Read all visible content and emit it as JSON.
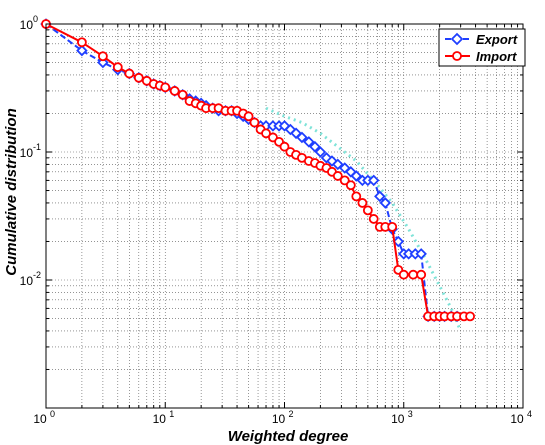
{
  "chart_data": {
    "type": "scatter",
    "title": "",
    "xlabel": "Weighted degree",
    "ylabel": "Cumulative distribution",
    "xscale": "log",
    "yscale": "log",
    "xlim": [
      1,
      10000
    ],
    "ylim": [
      0.001,
      1
    ],
    "grid": true,
    "legend_position": "top-right",
    "x_ticks": [
      {
        "base": "10",
        "exp": "0",
        "value": 1
      },
      {
        "base": "10",
        "exp": "1",
        "value": 10
      },
      {
        "base": "10",
        "exp": "2",
        "value": 100
      },
      {
        "base": "10",
        "exp": "3",
        "value": 1000
      },
      {
        "base": "10",
        "exp": "4",
        "value": 10000
      }
    ],
    "y_ticks": [
      {
        "base": "10",
        "exp": "0",
        "value": 1
      },
      {
        "base": "10",
        "exp": "-1",
        "value": 0.1
      },
      {
        "base": "10",
        "exp": "-2",
        "value": 0.01
      }
    ],
    "colors": {
      "export": "#1f3fff",
      "import": "#ff0000",
      "fit": "#7fe3d8",
      "grid": "#555555"
    },
    "series": [
      {
        "name": "Export",
        "marker": "diamond",
        "line_style": "dashed",
        "x": [
          1,
          2,
          3,
          4,
          5,
          6,
          7,
          8,
          9,
          10,
          12,
          14,
          16,
          18,
          20,
          22,
          25,
          28,
          32,
          36,
          40,
          45,
          50,
          56,
          63,
          70,
          80,
          90,
          100,
          112,
          125,
          140,
          160,
          180,
          200,
          225,
          250,
          280,
          320,
          360,
          400,
          450,
          500,
          560,
          630,
          700,
          800,
          900,
          1000,
          1100,
          1250,
          1400,
          1600,
          1800,
          2000,
          2200,
          2500,
          2800
        ],
        "y": [
          1,
          0.62,
          0.5,
          0.44,
          0.41,
          0.38,
          0.36,
          0.34,
          0.33,
          0.32,
          0.3,
          0.28,
          0.26,
          0.25,
          0.24,
          0.23,
          0.22,
          0.21,
          0.21,
          0.21,
          0.2,
          0.19,
          0.18,
          0.17,
          0.16,
          0.16,
          0.16,
          0.16,
          0.16,
          0.15,
          0.14,
          0.13,
          0.12,
          0.11,
          0.1,
          0.09,
          0.085,
          0.08,
          0.075,
          0.07,
          0.065,
          0.06,
          0.06,
          0.06,
          0.045,
          0.04,
          0.025,
          0.02,
          0.016,
          0.016,
          0.016,
          0.016,
          0.0052,
          0.0052,
          0.0052,
          0.0052,
          0.0052,
          0.0052
        ]
      },
      {
        "name": "Import",
        "marker": "circle",
        "line_style": "solid",
        "x": [
          1,
          2,
          3,
          4,
          5,
          6,
          7,
          8,
          9,
          10,
          12,
          14,
          16,
          18,
          20,
          22,
          25,
          28,
          32,
          36,
          40,
          45,
          50,
          56,
          63,
          70,
          80,
          90,
          100,
          112,
          125,
          140,
          160,
          180,
          200,
          225,
          250,
          280,
          320,
          360,
          400,
          450,
          500,
          560,
          630,
          700,
          800,
          900,
          1000,
          1200,
          1400,
          1600,
          1800,
          2000,
          2200,
          2500,
          2800,
          3200,
          3600
        ],
        "y": [
          1,
          0.72,
          0.56,
          0.46,
          0.41,
          0.38,
          0.36,
          0.34,
          0.33,
          0.32,
          0.3,
          0.28,
          0.25,
          0.24,
          0.23,
          0.22,
          0.22,
          0.22,
          0.21,
          0.21,
          0.21,
          0.2,
          0.19,
          0.17,
          0.15,
          0.14,
          0.13,
          0.12,
          0.11,
          0.1,
          0.095,
          0.09,
          0.085,
          0.082,
          0.078,
          0.075,
          0.07,
          0.065,
          0.06,
          0.055,
          0.045,
          0.04,
          0.035,
          0.03,
          0.026,
          0.026,
          0.026,
          0.012,
          0.011,
          0.011,
          0.011,
          0.0052,
          0.0052,
          0.0052,
          0.0052,
          0.0052,
          0.0052,
          0.0052,
          0.0052
        ]
      },
      {
        "marker": "none",
        "line_style": "dotted",
        "x": [
          70,
          100,
          140,
          200,
          280,
          400,
          560,
          800,
          1100,
          1500,
          2000,
          2500,
          3000
        ],
        "y": [
          0.22,
          0.19,
          0.17,
          0.14,
          0.11,
          0.085,
          0.06,
          0.04,
          0.025,
          0.015,
          0.009,
          0.006,
          0.004
        ]
      }
    ]
  }
}
